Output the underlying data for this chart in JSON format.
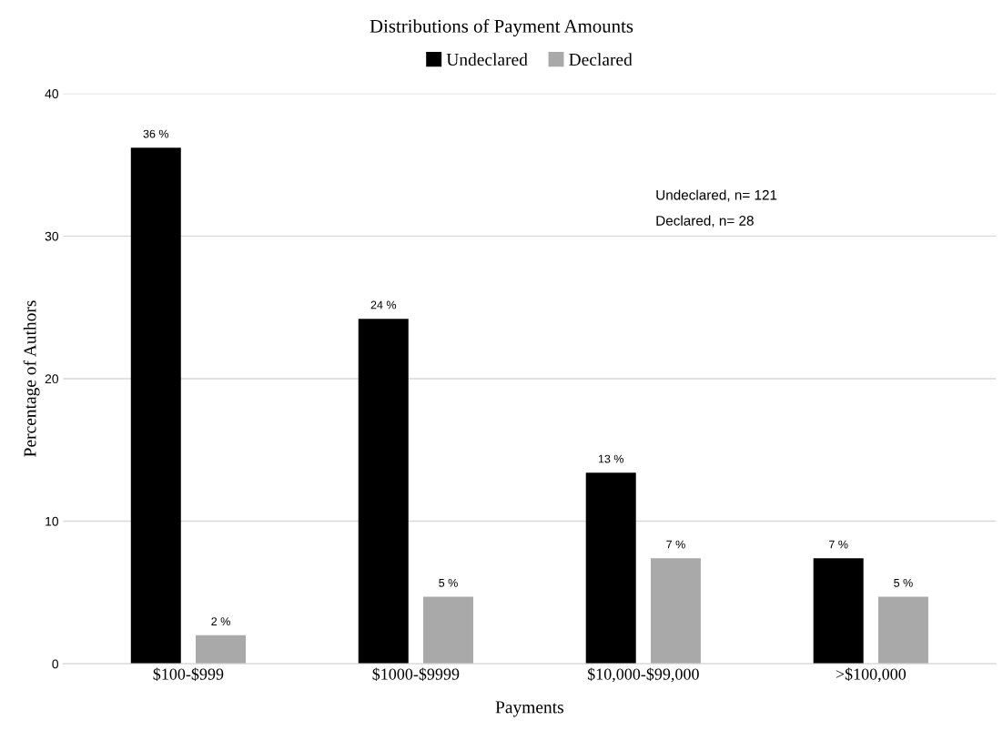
{
  "chart_data": {
    "type": "bar",
    "title": "Distributions of Payment Amounts",
    "xlabel": "Payments",
    "ylabel": "Percentage of Authors",
    "categories": [
      "$100-$999",
      "$1000-$9999",
      "$10,000-$99,000",
      ">$100,000"
    ],
    "series": [
      {
        "name": "Undeclared",
        "color": "#000000",
        "values": [
          36.2,
          24.2,
          13.4,
          7.4
        ],
        "value_labels": [
          "36 %",
          "24 %",
          "13 %",
          "7 %"
        ]
      },
      {
        "name": "Declared",
        "color": "#a9a9a9",
        "values": [
          2.0,
          4.7,
          7.4,
          4.7
        ],
        "value_labels": [
          "2 %",
          "5 %",
          "7 %",
          "5 %"
        ]
      }
    ],
    "ylim": [
      0,
      40
    ],
    "yticks": [
      0,
      10,
      20,
      30,
      40
    ],
    "grid": "y",
    "legend": "top",
    "annotations": [
      "Undeclared, n= 121",
      "Declared, n= 28"
    ]
  }
}
